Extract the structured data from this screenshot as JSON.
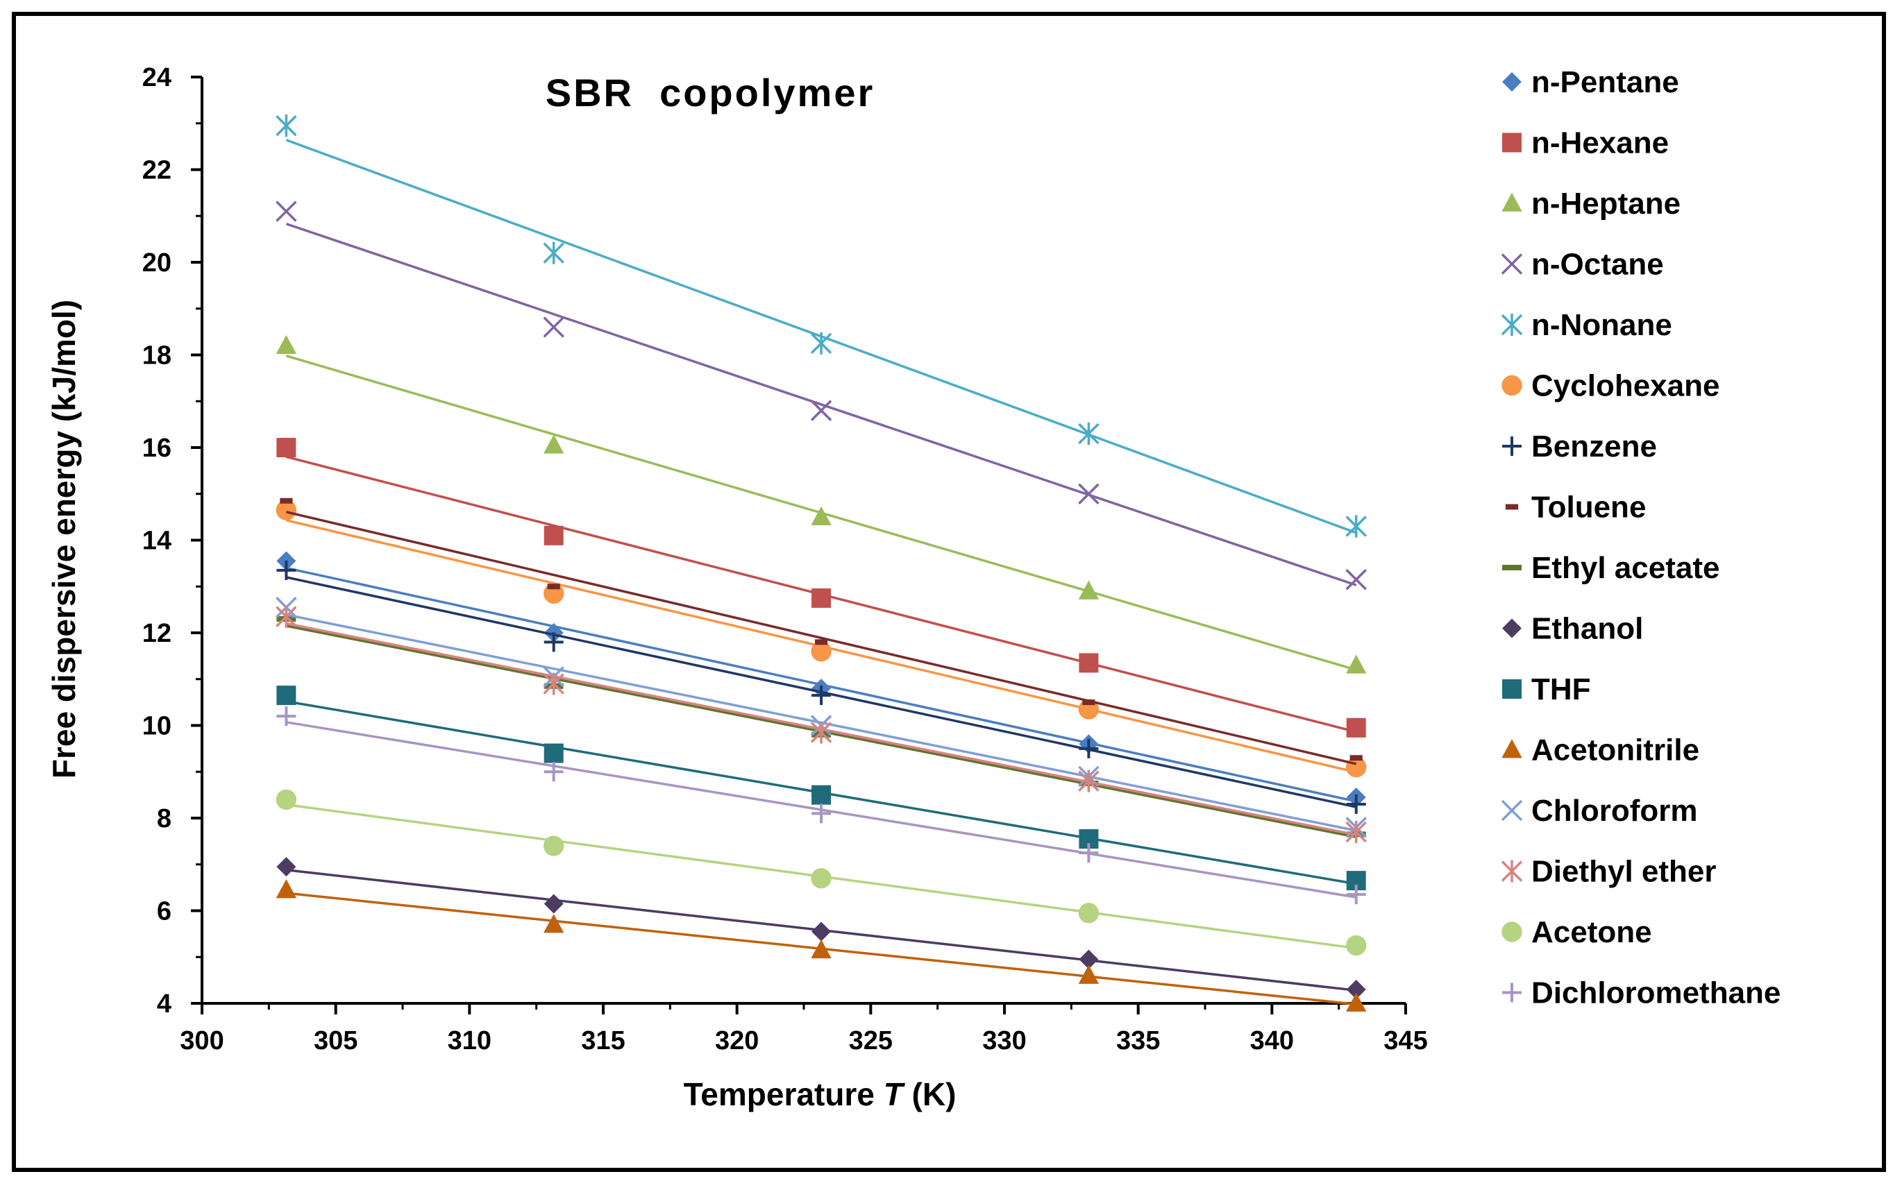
{
  "chart_data": {
    "type": "scatter",
    "title": "SBR  copolymer",
    "xlabel": "Temperature ",
    "xlabel_var": "T",
    "xlabel_unit": " (K)",
    "ylabel": "Free dispersive energy (kJ/mol)",
    "xlim": [
      300,
      345
    ],
    "ylim": [
      4,
      24
    ],
    "xticks": [
      "300",
      "305",
      "310",
      "315",
      "320",
      "325",
      "330",
      "335",
      "340",
      "345"
    ],
    "yticks": [
      "4",
      "6",
      "8",
      "10",
      "12",
      "14",
      "16",
      "18",
      "20",
      "22",
      "24"
    ],
    "x": [
      303.15,
      313.15,
      323.15,
      333.15,
      343.15
    ],
    "trendlines": true,
    "legend_position": "right",
    "series": [
      {
        "name": "n-Pentane",
        "marker": "diamond",
        "color": "#4a7ec0",
        "values": [
          13.55,
          12.0,
          10.8,
          9.6,
          8.45
        ]
      },
      {
        "name": "n-Hexane",
        "marker": "square",
        "color": "#c0504d",
        "values": [
          16.0,
          14.1,
          12.75,
          11.35,
          9.95
        ]
      },
      {
        "name": "n-Heptane",
        "marker": "triangle",
        "color": "#9bbb59",
        "values": [
          18.2,
          16.05,
          14.5,
          12.9,
          11.3
        ]
      },
      {
        "name": "n-Octane",
        "marker": "x",
        "color": "#8064a2",
        "values": [
          21.1,
          18.6,
          16.8,
          15.0,
          13.15
        ]
      },
      {
        "name": "n-Nonane",
        "marker": "asterisk",
        "color": "#4bacc6",
        "values": [
          22.95,
          20.2,
          18.25,
          16.3,
          14.3
        ]
      },
      {
        "name": "Cyclohexane",
        "marker": "circle",
        "color": "#f79646",
        "values": [
          14.65,
          12.85,
          11.6,
          10.35,
          9.1
        ]
      },
      {
        "name": "Benzene",
        "marker": "plus",
        "color": "#1f3864",
        "values": [
          13.35,
          11.8,
          10.65,
          9.5,
          8.3
        ]
      },
      {
        "name": "Toluene",
        "marker": "dash",
        "color": "#772c2a",
        "values": [
          14.85,
          13.0,
          11.8,
          10.5,
          9.3
        ]
      },
      {
        "name": "Ethyl acetate",
        "marker": "line",
        "color": "#5f7530",
        "values": [
          12.3,
          10.85,
          9.8,
          8.75,
          7.65
        ]
      },
      {
        "name": "Ethanol",
        "marker": "diamond",
        "color": "#4d3b62",
        "values": [
          6.95,
          6.15,
          5.55,
          4.95,
          4.3
        ]
      },
      {
        "name": "THF",
        "marker": "square",
        "color": "#1f6b7a",
        "values": [
          10.65,
          9.4,
          8.5,
          7.55,
          6.65
        ]
      },
      {
        "name": "Acetonitrile",
        "marker": "triangle",
        "color": "#c0620c",
        "values": [
          6.45,
          5.7,
          5.15,
          4.6,
          4.0
        ]
      },
      {
        "name": "Chloroform",
        "marker": "x",
        "color": "#7f9fd5",
        "values": [
          12.55,
          11.05,
          10.0,
          8.9,
          7.8
        ]
      },
      {
        "name": "Diethyl ether",
        "marker": "asterisk",
        "color": "#d98380",
        "values": [
          12.35,
          10.9,
          9.85,
          8.8,
          7.7
        ]
      },
      {
        "name": "Acetone",
        "marker": "circle",
        "color": "#b6d382",
        "values": [
          8.4,
          7.4,
          6.7,
          5.95,
          5.25
        ]
      },
      {
        "name": "Dichloromethane",
        "marker": "plus",
        "color": "#a795c3",
        "values": [
          10.2,
          9.0,
          8.1,
          7.25,
          6.35
        ]
      }
    ]
  }
}
